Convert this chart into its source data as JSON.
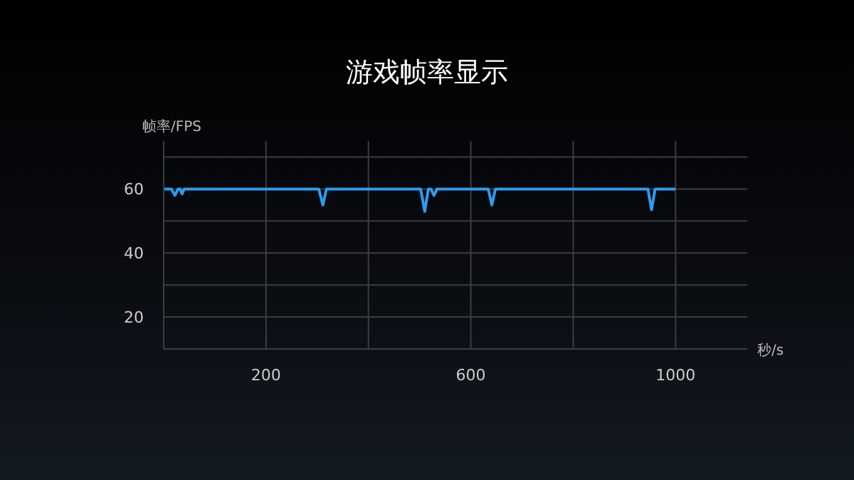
{
  "chart_data": {
    "type": "line",
    "title": "游戏帧率显示",
    "xlabel": "秒/s",
    "ylabel": "帧率/FPS",
    "x": [
      0,
      15,
      22,
      28,
      32,
      36,
      40,
      303,
      311,
      318,
      502,
      510,
      517,
      522,
      528,
      534,
      634,
      641,
      648,
      946,
      953,
      960,
      1000
    ],
    "series": [
      {
        "color": "#2b9cf2",
        "values": [
          60,
          60,
          58,
          60,
          60,
          58.5,
          60,
          60,
          55,
          60,
          60,
          53,
          60,
          60,
          58,
          60,
          60,
          55,
          60,
          60,
          53.5,
          60,
          60
        ]
      }
    ],
    "xlim": [
      0,
      1140
    ],
    "xticks": [
      200,
      {
        "value": 400,
        "label": null
      },
      600,
      {
        "value": 800,
        "label": null
      },
      1000
    ],
    "ylim": [
      10,
      75
    ],
    "yticks": [
      {
        "value": 10,
        "label": null
      },
      20,
      {
        "value": 30,
        "label": null
      },
      40,
      {
        "value": 50,
        "label": null
      },
      60,
      {
        "value": 70,
        "label": null
      }
    ],
    "grid": true,
    "legend": false,
    "marker": "none",
    "line_style": "solid"
  }
}
